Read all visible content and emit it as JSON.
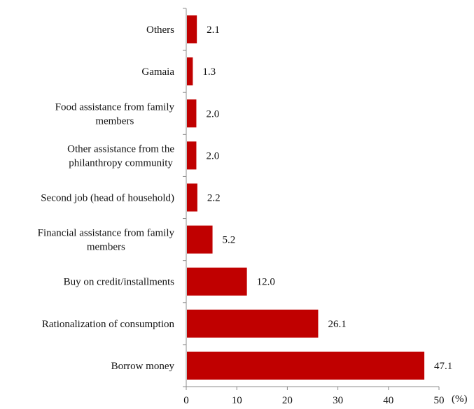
{
  "chart_data": {
    "type": "bar",
    "orientation": "horizontal",
    "categories": [
      "Borrow money",
      "Rationalization of consumption",
      "Buy on credit/installments",
      "Financial assistance from family members",
      "Second job (head of household)",
      "Other assistance from the philanthropy community",
      "Food assistance from family members",
      "Gamaia",
      "Others"
    ],
    "category_lines": [
      [
        "Borrow money"
      ],
      [
        "Rationalization of consumption"
      ],
      [
        "Buy on credit/installments"
      ],
      [
        "Financial assistance from family",
        "members"
      ],
      [
        "Second job (head of household)"
      ],
      [
        "Other assistance from the",
        "philanthropy community"
      ],
      [
        "Food assistance from family",
        "members"
      ],
      [
        "Gamaia"
      ],
      [
        "Others"
      ]
    ],
    "values": [
      47.1,
      26.1,
      12.0,
      5.2,
      2.2,
      2.0,
      2.0,
      1.3,
      2.1
    ],
    "value_labels": [
      "47.1",
      "26.1",
      "12.0",
      "5.2",
      "2.2",
      "2.0",
      "2.0",
      "1.3",
      "2.1"
    ],
    "xlim": [
      0,
      50
    ],
    "xticks": [
      0,
      10,
      20,
      30,
      40,
      50
    ],
    "xtick_labels": [
      "0",
      "10",
      "20",
      "30",
      "40",
      "50"
    ],
    "x_unit": "(%)",
    "grid": false,
    "bar_color": "#C00000"
  }
}
